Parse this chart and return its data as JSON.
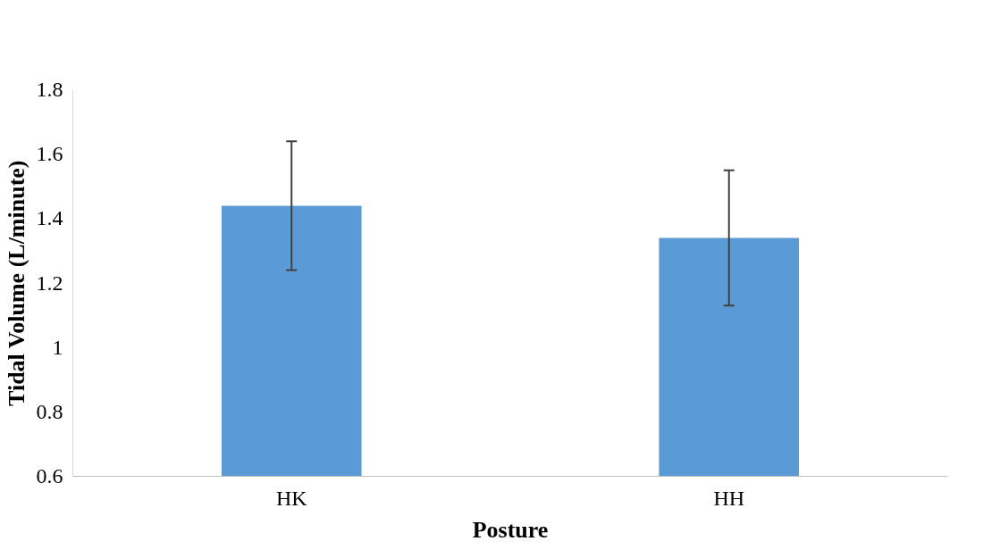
{
  "chart_data": {
    "type": "bar",
    "xlabel": "Posture",
    "ylabel": "Tidal Volume (L/minute)",
    "categories": [
      "HK",
      "HH"
    ],
    "series": [
      {
        "color": "#5b9bd5",
        "values": [
          1.44,
          1.34
        ],
        "errors": [
          0.2,
          0.21
        ]
      }
    ],
    "ylim": [
      0.6,
      1.8
    ],
    "yticks": [
      0.6,
      0.8,
      1,
      1.2,
      1.4,
      1.6,
      1.8
    ],
    "grid": false
  }
}
